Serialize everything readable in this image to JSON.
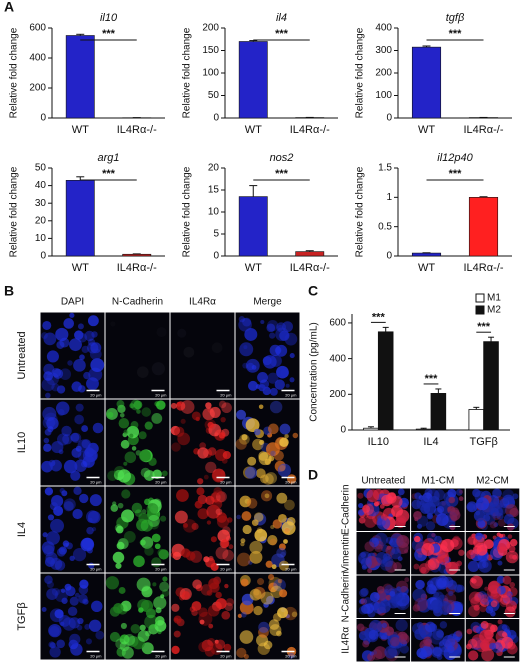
{
  "panel_labels": [
    "A",
    "B",
    "C",
    "D"
  ],
  "chart_data": [
    {
      "type": "bar",
      "title": "il10",
      "ylabel": "Relative fold change",
      "categories": [
        "WT",
        "IL4Rα-/-"
      ],
      "values": [
        550,
        2
      ],
      "errors": [
        8,
        0.5
      ],
      "colors": [
        "#2323c8",
        "#c82323"
      ],
      "ylim": [
        0,
        600
      ],
      "yticks": [
        0,
        200,
        400,
        600
      ],
      "annotation": "***"
    },
    {
      "type": "bar",
      "title": "il4",
      "ylabel": "Relative fold change",
      "categories": [
        "WT",
        "IL4Rα-/-"
      ],
      "values": [
        170,
        1
      ],
      "errors": [
        2,
        0.3
      ],
      "colors": [
        "#2323c8",
        "#c82323"
      ],
      "ylim": [
        0,
        200
      ],
      "yticks": [
        0,
        50,
        100,
        150,
        200
      ],
      "annotation": "***"
    },
    {
      "type": "bar",
      "title": "tgfβ",
      "ylabel": "Relative fold change",
      "categories": [
        "WT",
        "IL4Rα-/-"
      ],
      "values": [
        315,
        2
      ],
      "errors": [
        5,
        0.5
      ],
      "colors": [
        "#2323c8",
        "#c82323"
      ],
      "ylim": [
        0,
        400
      ],
      "yticks": [
        0,
        100,
        200,
        300,
        400
      ],
      "annotation": "***"
    },
    {
      "type": "bar",
      "title": "arg1",
      "ylabel": "Relative fold change",
      "categories": [
        "WT",
        "IL4Rα-/-"
      ],
      "values": [
        43,
        1
      ],
      "errors": [
        2,
        0.2
      ],
      "colors": [
        "#2323c8",
        "#c82323"
      ],
      "ylim": [
        0,
        50
      ],
      "yticks": [
        0,
        10,
        20,
        30,
        40,
        50
      ],
      "annotation": "***"
    },
    {
      "type": "bar",
      "title": "nos2",
      "ylabel": "Relative fold change",
      "categories": [
        "WT",
        "IL4Rα-/-"
      ],
      "values": [
        13.5,
        1
      ],
      "errors": [
        2.5,
        0.2
      ],
      "colors": [
        "#2323c8",
        "#c82323"
      ],
      "ylim": [
        0,
        20
      ],
      "yticks": [
        0,
        5,
        10,
        15,
        20
      ],
      "annotation": "***"
    },
    {
      "type": "bar",
      "title": "il12p40",
      "ylabel": "Relative fold change",
      "categories": [
        "WT",
        "IL4Rα-/-"
      ],
      "values": [
        0.05,
        1
      ],
      "errors": [
        0.005,
        0.01
      ],
      "colors": [
        "#2323c8",
        "#ff2020"
      ],
      "ylim": [
        0,
        1.5
      ],
      "yticks": [
        0,
        0.5,
        1,
        1.5
      ],
      "annotation": "***"
    },
    {
      "type": "grouped_bar",
      "ylabel": "Concentration (pg/mL)",
      "categories": [
        "IL10",
        "IL4",
        "TGFβ"
      ],
      "series": [
        {
          "name": "M1",
          "color": "#ffffff",
          "values": [
            10,
            5,
            115
          ],
          "errors": [
            8,
            5,
            12
          ]
        },
        {
          "name": "M2",
          "color": "#111111",
          "values": [
            550,
            205,
            495
          ],
          "errors": [
            25,
            25,
            25
          ]
        }
      ],
      "ylim": [
        0,
        650
      ],
      "yticks": [
        0,
        200,
        400,
        600
      ],
      "annotations": [
        "***",
        "***",
        "***"
      ],
      "legend": "upper right"
    }
  ],
  "panel_b": {
    "columns": [
      "DAPI",
      "N-Cadherin",
      "IL4Rα",
      "Merge"
    ],
    "rows": [
      "Untreated",
      "IL10",
      "IL4",
      "TGFβ"
    ],
    "scale_bar": "20 μm"
  },
  "panel_d": {
    "columns": [
      "Untreated",
      "M1-CM",
      "M2-CM"
    ],
    "rows": [
      "E-Cadherin",
      "Vimentin",
      "N-Cadherin",
      "IL4Rα"
    ]
  }
}
